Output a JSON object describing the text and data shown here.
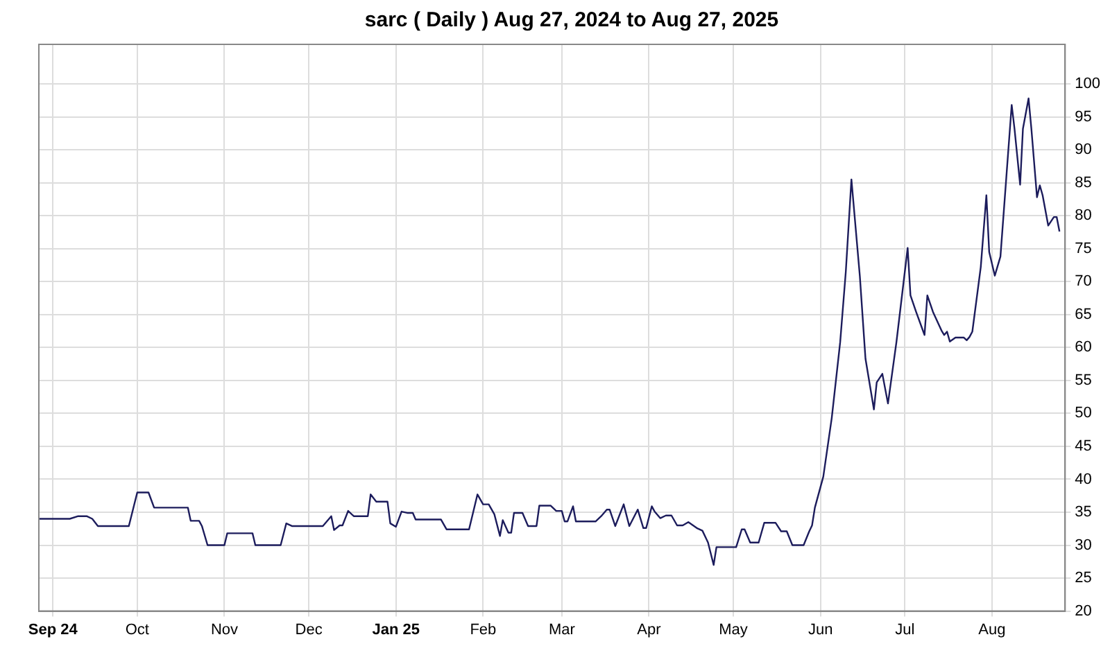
{
  "chart_data": {
    "type": "line",
    "title": "sarc ( Daily ) Aug 27, 2024 to Aug 27, 2025",
    "x": [
      "2024-08-27",
      "2024-09-07",
      "2024-09-10",
      "2024-09-13",
      "2024-09-15",
      "2024-09-17",
      "2024-09-28",
      "2024-10-01",
      "2024-10-05",
      "2024-10-07",
      "2024-10-19",
      "2024-10-20",
      "2024-10-23",
      "2024-10-24",
      "2024-10-26",
      "2024-11-01",
      "2024-11-02",
      "2024-11-11",
      "2024-11-12",
      "2024-11-21",
      "2024-11-23",
      "2024-11-25",
      "2024-12-06",
      "2024-12-09",
      "2024-12-10",
      "2024-12-12",
      "2024-12-13",
      "2024-12-15",
      "2024-12-17",
      "2024-12-22",
      "2024-12-23",
      "2024-12-25",
      "2024-12-29",
      "2024-12-30",
      "2025-01-01",
      "2025-01-03",
      "2025-01-05",
      "2025-01-07",
      "2025-01-08",
      "2025-01-17",
      "2025-01-19",
      "2025-01-27",
      "2025-01-30",
      "2025-02-01",
      "2025-02-03",
      "2025-02-05",
      "2025-02-07",
      "2025-02-08",
      "2025-02-10",
      "2025-02-11",
      "2025-02-12",
      "2025-02-15",
      "2025-02-17",
      "2025-02-20",
      "2025-02-21",
      "2025-02-25",
      "2025-02-27",
      "2025-03-01",
      "2025-03-02",
      "2025-03-03",
      "2025-03-05",
      "2025-03-06",
      "2025-03-13",
      "2025-03-15",
      "2025-03-17",
      "2025-03-18",
      "2025-03-20",
      "2025-03-23",
      "2025-03-25",
      "2025-03-28",
      "2025-03-30",
      "2025-03-31",
      "2025-04-02",
      "2025-04-03",
      "2025-04-05",
      "2025-04-07",
      "2025-04-09",
      "2025-04-11",
      "2025-04-13",
      "2025-04-15",
      "2025-04-18",
      "2025-04-20",
      "2025-04-22",
      "2025-04-24",
      "2025-04-25",
      "2025-05-02",
      "2025-05-04",
      "2025-05-05",
      "2025-05-07",
      "2025-05-10",
      "2025-05-12",
      "2025-05-16",
      "2025-05-18",
      "2025-05-20",
      "2025-05-22",
      "2025-05-26",
      "2025-05-28",
      "2025-05-29",
      "2025-05-30",
      "2025-06-02",
      "2025-06-05",
      "2025-06-08",
      "2025-06-10",
      "2025-06-12",
      "2025-06-15",
      "2025-06-17",
      "2025-06-20",
      "2025-06-21",
      "2025-06-23",
      "2025-06-25",
      "2025-06-28",
      "2025-07-02",
      "2025-07-03",
      "2025-07-05",
      "2025-07-08",
      "2025-07-09",
      "2025-07-11",
      "2025-07-14",
      "2025-07-15",
      "2025-07-16",
      "2025-07-17",
      "2025-07-19",
      "2025-07-22",
      "2025-07-23",
      "2025-07-24",
      "2025-07-25",
      "2025-07-28",
      "2025-07-30",
      "2025-07-31",
      "2025-08-02",
      "2025-08-04",
      "2025-08-06",
      "2025-08-08",
      "2025-08-09",
      "2025-08-11",
      "2025-08-12",
      "2025-08-14",
      "2025-08-15",
      "2025-08-17",
      "2025-08-18",
      "2025-08-19",
      "2025-08-21",
      "2025-08-23",
      "2025-08-24",
      "2025-08-25"
    ],
    "series": [
      {
        "color": "#1c1c5c",
        "values": [
          34,
          34,
          34.4,
          34.4,
          34,
          32.9,
          32.9,
          38,
          38,
          35.7,
          35.7,
          33.7,
          33.7,
          32.9,
          30,
          30,
          31.8,
          31.8,
          30,
          30,
          33.3,
          32.9,
          32.9,
          34.4,
          32.3,
          33,
          33,
          35.2,
          34.4,
          34.4,
          37.7,
          36.6,
          36.6,
          33.3,
          32.8,
          35.1,
          34.9,
          34.9,
          33.9,
          33.9,
          32.4,
          32.4,
          37.7,
          36.2,
          36.2,
          34.7,
          31.4,
          33.8,
          31.9,
          31.9,
          34.9,
          34.9,
          32.9,
          32.9,
          36,
          36,
          35.2,
          35.2,
          33.6,
          33.6,
          35.9,
          33.6,
          33.6,
          34.4,
          35.4,
          35.4,
          32.9,
          36.2,
          32.9,
          35.4,
          32.6,
          32.6,
          35.9,
          35.1,
          34.1,
          34.5,
          34.5,
          33,
          33,
          33.5,
          32.6,
          32.2,
          30.4,
          27,
          29.7,
          29.7,
          32.4,
          32.4,
          30.4,
          30.4,
          33.4,
          33.4,
          32.1,
          32.1,
          30,
          30,
          32.1,
          33,
          35.7,
          40.4,
          49.3,
          60.8,
          71.5,
          85.5,
          70.8,
          58.3,
          50.6,
          54.7,
          56,
          51.5,
          60.8,
          75.1,
          67.9,
          65.4,
          61.9,
          67.9,
          65.4,
          62.6,
          61.9,
          62.4,
          60.9,
          61.5,
          61.5,
          61.1,
          61.6,
          62.4,
          72.2,
          83.1,
          74.5,
          70.9,
          73.8,
          85.3,
          96.8,
          93.2,
          84.7,
          93.2,
          97.8,
          93.2,
          82.8,
          84.6,
          83.1,
          78.5,
          79.8,
          79.8,
          77.6
        ]
      }
    ],
    "xlim": [
      "2024-08-27",
      "2025-08-27"
    ],
    "xticks": [
      {
        "value": "2024-09-01",
        "label": "Sep 24"
      },
      {
        "value": "2024-10-01",
        "label": "Oct"
      },
      {
        "value": "2024-11-01",
        "label": "Nov"
      },
      {
        "value": "2024-12-01",
        "label": "Dec"
      },
      {
        "value": "2025-01-01",
        "label": "Jan 25"
      },
      {
        "value": "2025-02-01",
        "label": "Feb"
      },
      {
        "value": "2025-03-01",
        "label": "Mar"
      },
      {
        "value": "2025-04-01",
        "label": "Apr"
      },
      {
        "value": "2025-05-01",
        "label": "May"
      },
      {
        "value": "2025-06-01",
        "label": "Jun"
      },
      {
        "value": "2025-07-01",
        "label": "Jul"
      },
      {
        "value": "2025-08-01",
        "label": "Aug"
      }
    ],
    "ylim": [
      20,
      106
    ],
    "yticks": [
      20,
      25,
      30,
      35,
      40,
      45,
      50,
      55,
      60,
      65,
      70,
      75,
      80,
      85,
      90,
      95,
      100
    ],
    "grid": true,
    "marker": "none",
    "line_style": "solid"
  }
}
